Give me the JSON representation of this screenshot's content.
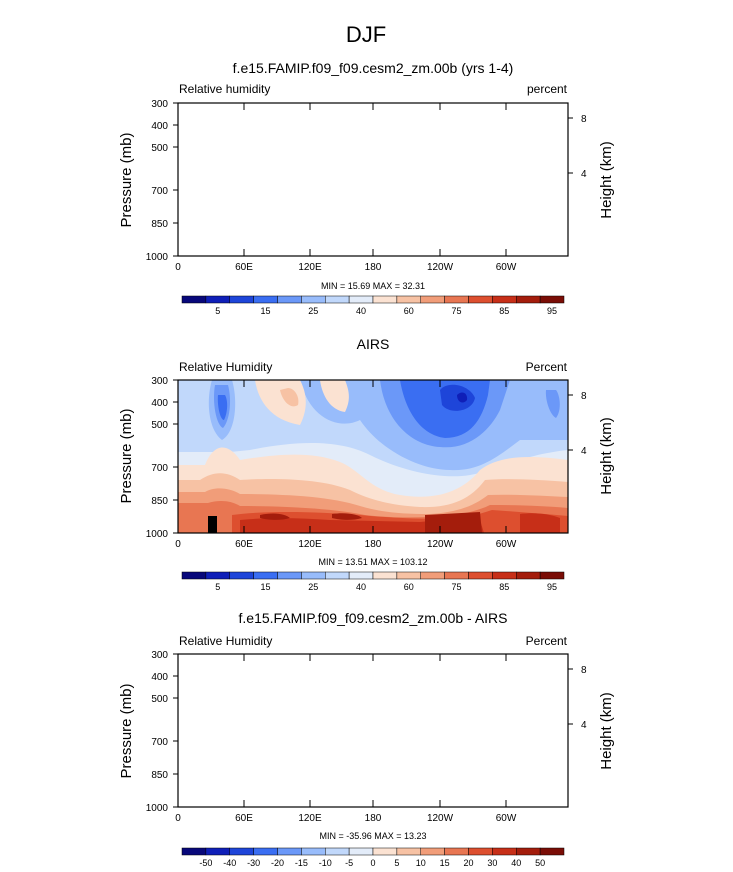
{
  "figure_title": "DJF",
  "chart_data": [
    {
      "type": "contour",
      "title": "f.e15.FAMIP.f09_f09.cesm2_zm.00b (yrs 1-4)",
      "left_label": "Relative humidity",
      "right_label": "percent",
      "ylabel": "Pressure (mb)",
      "y2label": "Height (km)",
      "y_ticks": [
        "300",
        "400",
        "500",
        "700",
        "850",
        "1000"
      ],
      "y2_ticks": [
        "8",
        "4"
      ],
      "x_ticks": [
        "0",
        "60E",
        "120E",
        "180",
        "120W",
        "60W"
      ],
      "minmax": "MIN =  15.69  MAX =  32.31",
      "colorbar_labels": [
        "5",
        "15",
        "25",
        "40",
        "60",
        "75",
        "85",
        "95"
      ],
      "filled": false
    },
    {
      "type": "contour",
      "title": "AIRS",
      "left_label": "Relative Humidity",
      "right_label": "Percent",
      "ylabel": "Pressure (mb)",
      "y2label": "Height (km)",
      "y_ticks": [
        "300",
        "400",
        "500",
        "700",
        "850",
        "1000"
      ],
      "y2_ticks": [
        "8",
        "4"
      ],
      "x_ticks": [
        "0",
        "60E",
        "120E",
        "180",
        "120W",
        "60W"
      ],
      "minmax": "MIN =  13.51  MAX =  103.12",
      "colorbar_labels": [
        "5",
        "15",
        "25",
        "40",
        "60",
        "75",
        "85",
        "95"
      ],
      "filled": true,
      "field_range": [
        13.51,
        103.12
      ]
    },
    {
      "type": "contour",
      "title": "f.e15.FAMIP.f09_f09.cesm2_zm.00b - AIRS",
      "left_label": "Relative Humidity",
      "right_label": "Percent",
      "ylabel": "Pressure (mb)",
      "y2label": "Height (km)",
      "y_ticks": [
        "300",
        "400",
        "500",
        "700",
        "850",
        "1000"
      ],
      "y2_ticks": [
        "8",
        "4"
      ],
      "x_ticks": [
        "0",
        "60E",
        "120E",
        "180",
        "120W",
        "60W"
      ],
      "minmax": "MIN = -35.96  MAX =  13.23",
      "colorbar_labels": [
        "-50",
        "-40",
        "-30",
        "-20",
        "-15",
        "-10",
        "-5",
        "0",
        "5",
        "10",
        "15",
        "20",
        "30",
        "40",
        "50"
      ],
      "filled": false
    }
  ],
  "colors": {
    "bar1": [
      "#08087a",
      "#0f1fb8",
      "#1e45d9",
      "#3a6ef2",
      "#6b98f8",
      "#98bcfb",
      "#c1d8fb",
      "#e3ecf9",
      "#fbe2d2",
      "#f7c2a4",
      "#f19d79",
      "#e87652",
      "#dd4f2f",
      "#c72f18",
      "#a41d0c",
      "#7a0d06"
    ],
    "bar3": [
      "#08087a",
      "#0f1fb8",
      "#1e45d9",
      "#3a6ef2",
      "#6b98f8",
      "#98bcfb",
      "#c1d8fb",
      "#e3ecf9",
      "#fbe2d2",
      "#f7c2a4",
      "#f19d79",
      "#e87652",
      "#dd4f2f",
      "#c72f18",
      "#a41d0c",
      "#7a0d06"
    ]
  }
}
